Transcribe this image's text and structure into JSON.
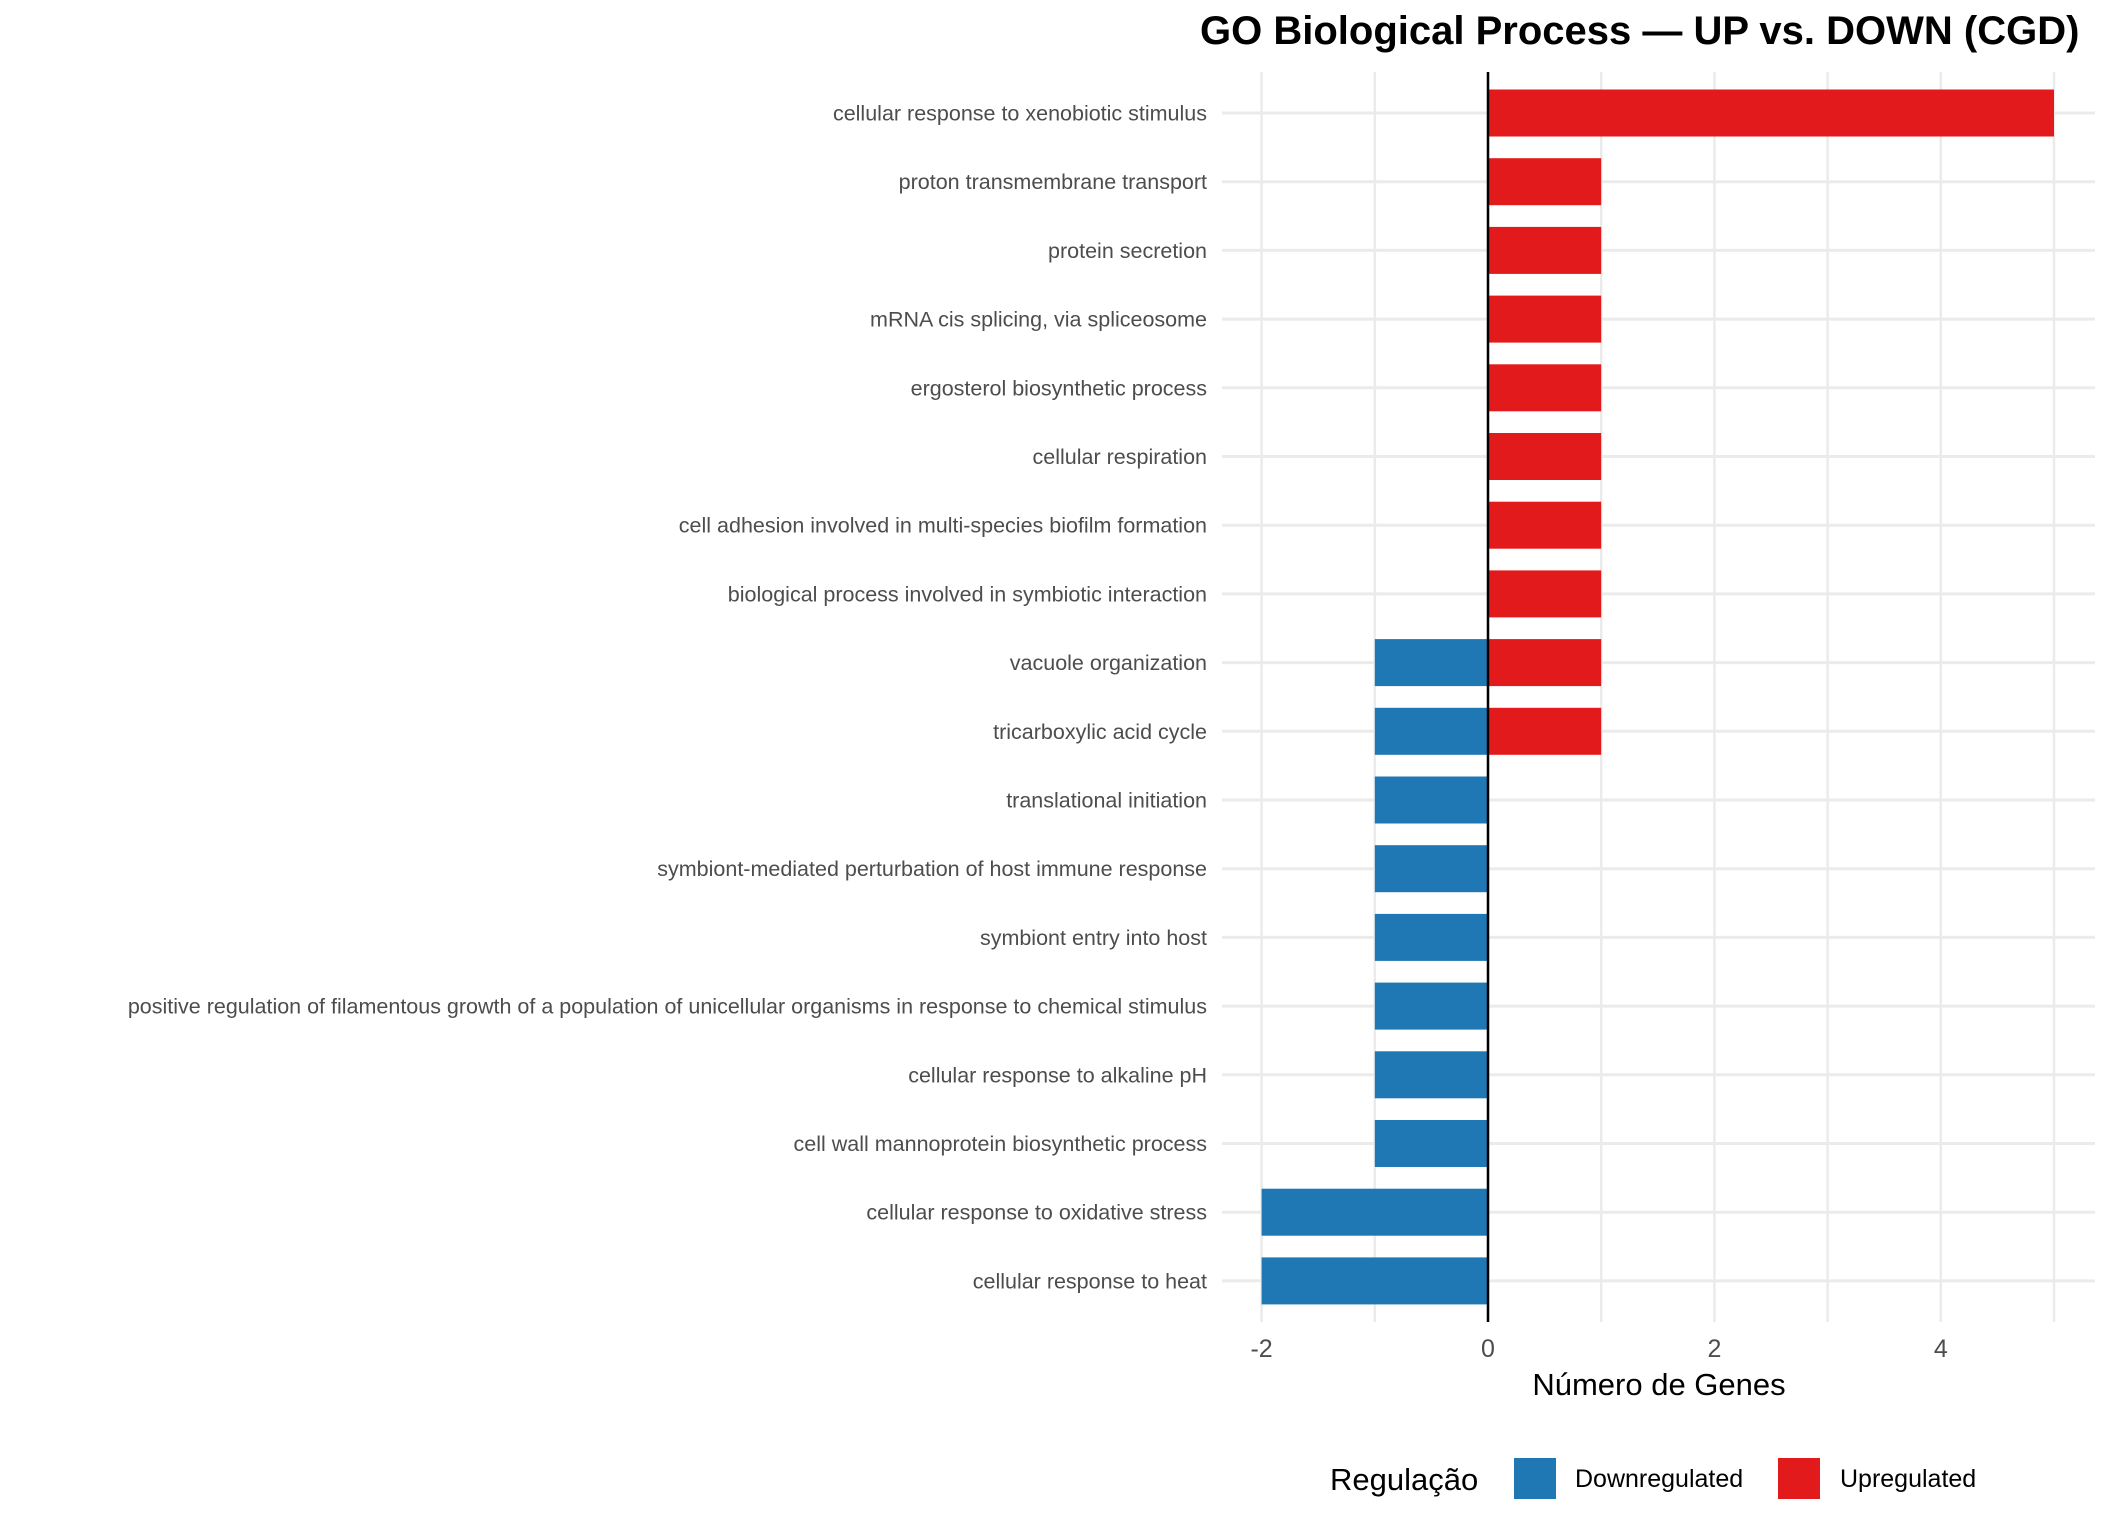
{
  "chart_data": {
    "type": "bar",
    "orientation": "horizontal",
    "title": "GO Biological Process — UP vs. DOWN (CGD)",
    "xlabel": "Número de Genes",
    "ylabel": "",
    "xlim": [
      -2.2,
      5.35
    ],
    "xticks": [
      -2,
      0,
      2,
      4
    ],
    "xtick_labels": [
      "-2",
      "0",
      "2",
      "4"
    ],
    "grid": true,
    "categories": [
      "cellular response to xenobiotic stimulus",
      "proton transmembrane transport",
      "protein secretion",
      "mRNA cis splicing, via spliceosome",
      "ergosterol biosynthetic process",
      "cellular respiration",
      "cell adhesion involved in multi-species biofilm formation",
      "biological process involved in symbiotic interaction",
      "vacuole organization",
      "tricarboxylic acid cycle",
      "translational initiation",
      "symbiont-mediated perturbation of host immune response",
      "symbiont entry into host",
      "positive regulation of filamentous growth of a population of unicellular organisms in response to chemical stimulus",
      "cellular response to alkaline pH",
      "cell wall mannoprotein biosynthetic process",
      "cellular response to oxidative stress",
      "cellular response to heat"
    ],
    "series": [
      {
        "name": "Downregulated",
        "color": "#1F78B4",
        "values": [
          0,
          0,
          0,
          0,
          0,
          0,
          0,
          0,
          -1,
          -1,
          -1,
          -1,
          -1,
          -1,
          -1,
          -1,
          -2,
          -2
        ]
      },
      {
        "name": "Upregulated",
        "color": "#E31A1C",
        "values": [
          5,
          1,
          1,
          1,
          1,
          1,
          1,
          1,
          1,
          1,
          0,
          0,
          0,
          0,
          0,
          0,
          0,
          0
        ]
      }
    ],
    "legend": {
      "title": "Regulação",
      "position": "bottom"
    }
  }
}
